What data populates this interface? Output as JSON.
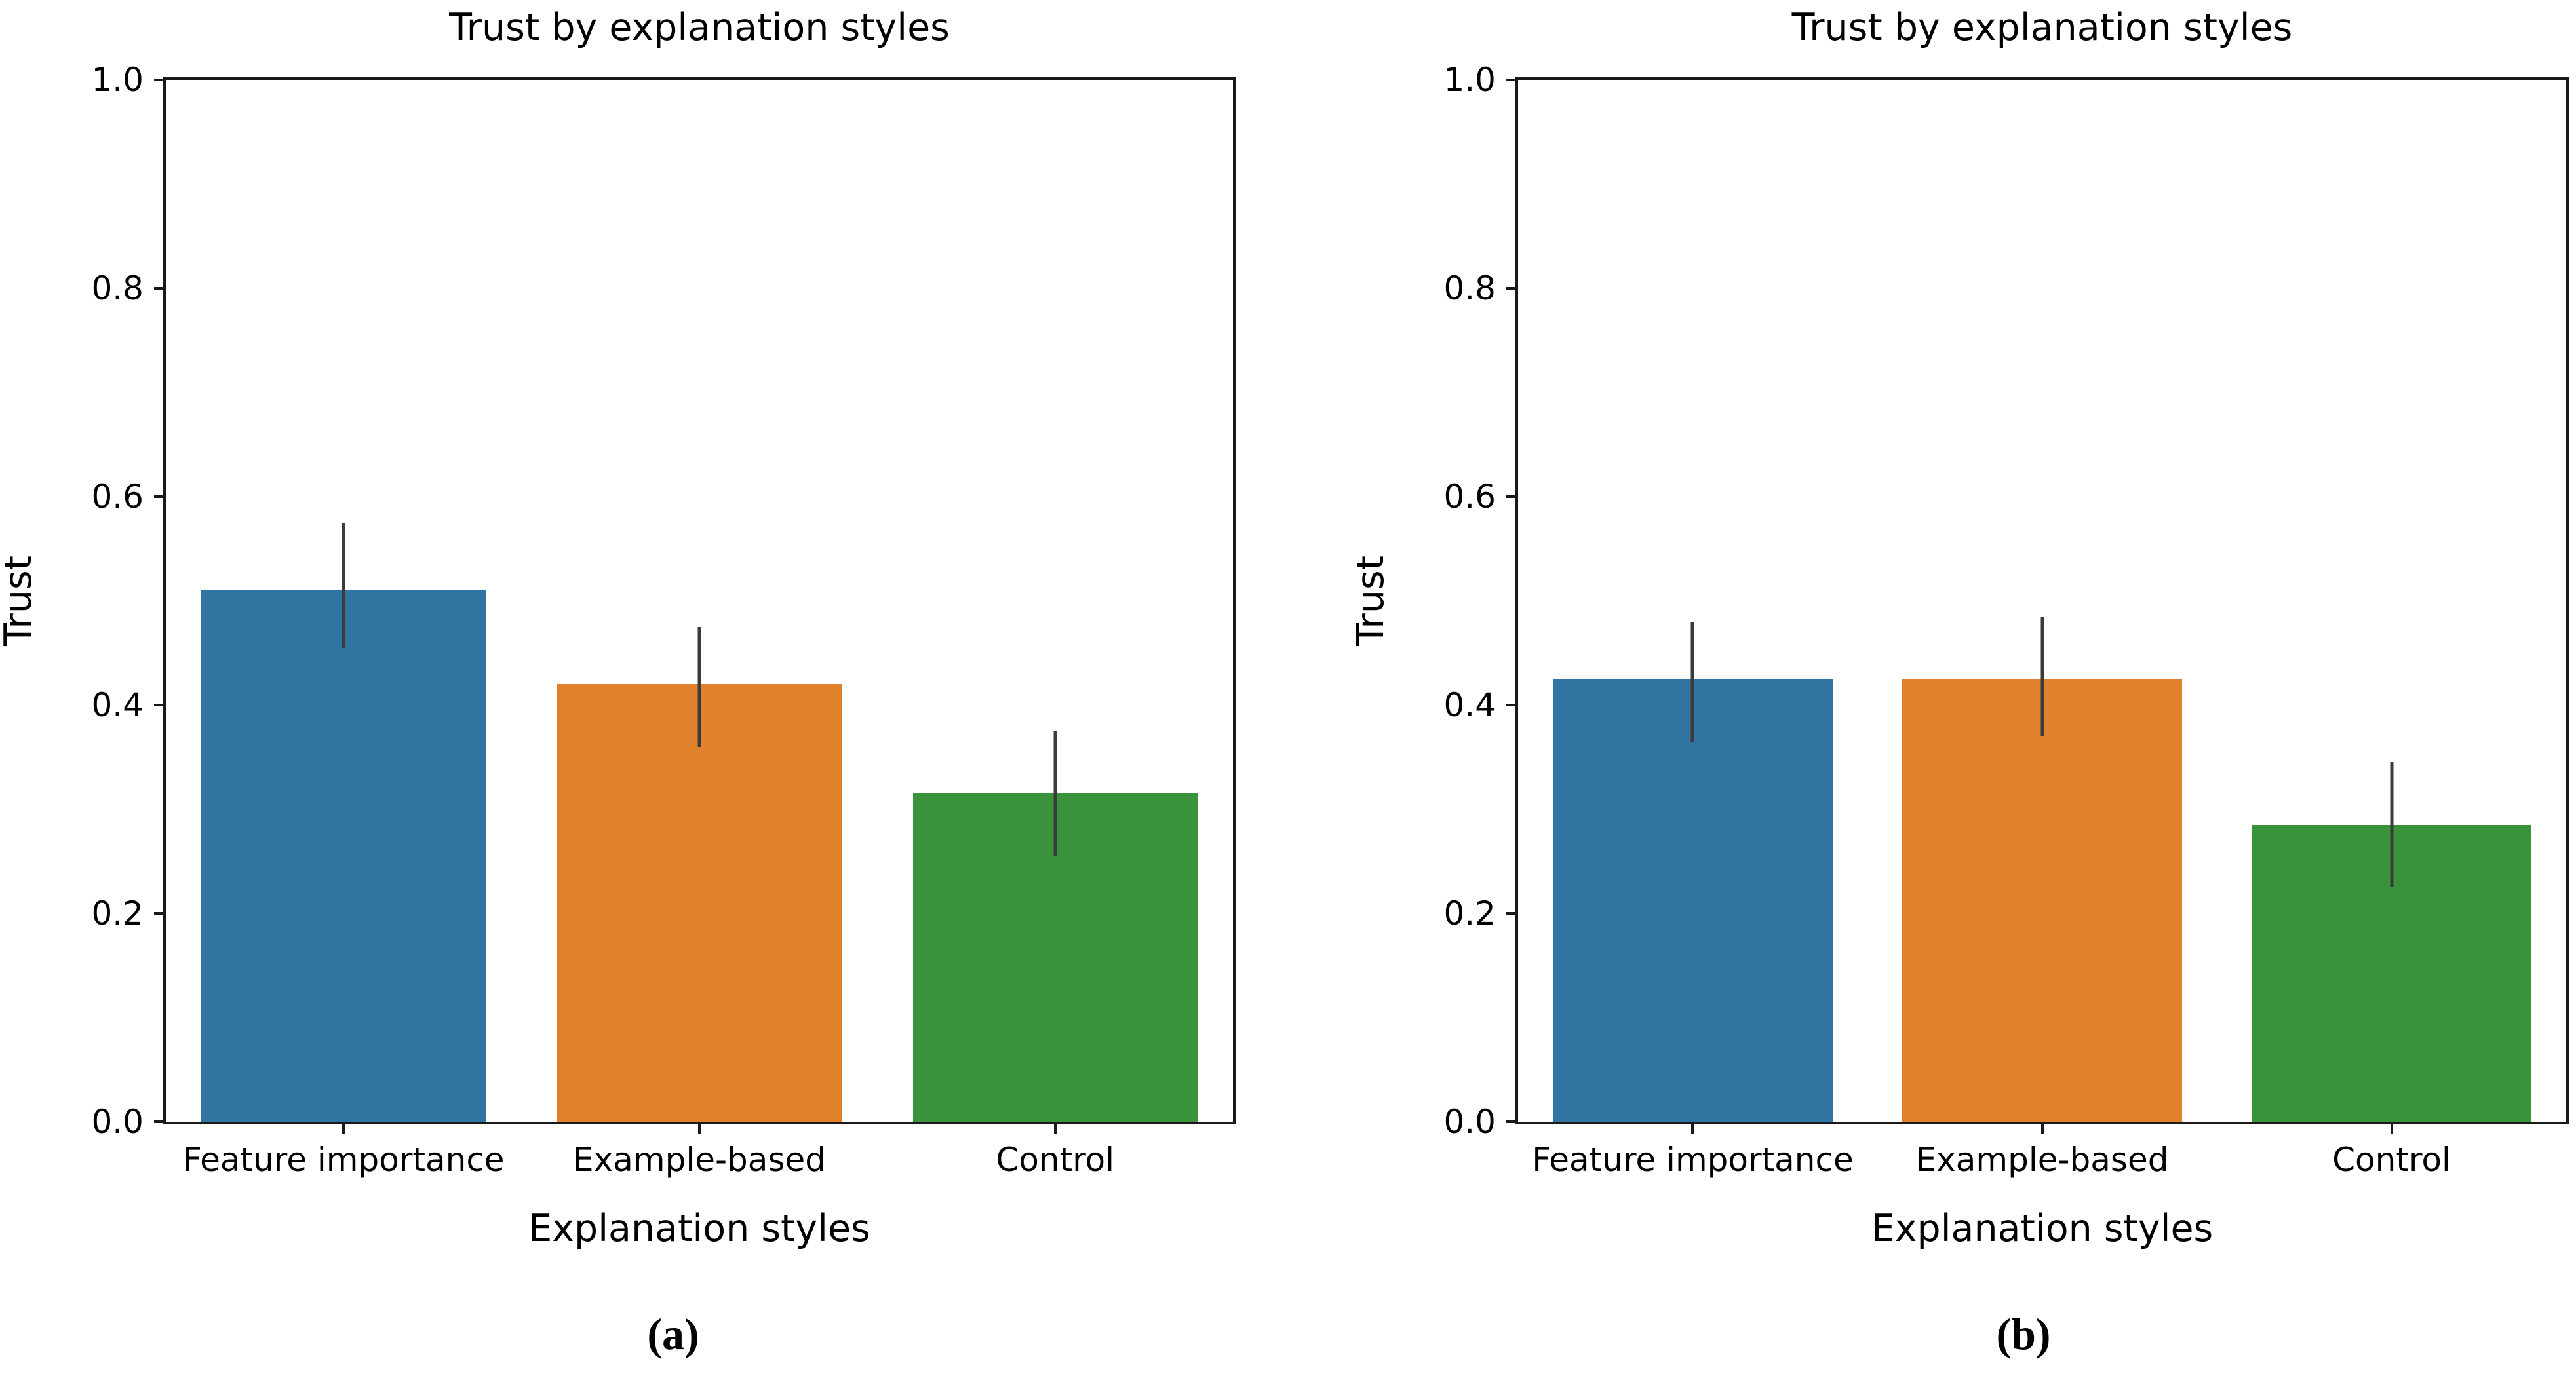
{
  "figure": {
    "captions": [
      {
        "label": "(a)"
      },
      {
        "label": "(b)"
      }
    ]
  },
  "chart_data": [
    {
      "type": "bar",
      "panel": "(a)",
      "title": "Trust by explanation styles",
      "xlabel": "Explanation styles",
      "ylabel": "Trust",
      "categories": [
        "Feature importance",
        "Example-based",
        "Control"
      ],
      "values": [
        0.51,
        0.42,
        0.315
      ],
      "error_low": [
        0.455,
        0.36,
        0.255
      ],
      "error_high": [
        0.575,
        0.475,
        0.375
      ],
      "bar_colors": [
        "#3274a1",
        "#e1812c",
        "#3a923a"
      ],
      "error_color": "#3b3b3b",
      "ylim": [
        0,
        1
      ],
      "yticks": [
        0.0,
        0.2,
        0.4,
        0.6,
        0.8,
        1.0
      ],
      "grid": false,
      "legend_position": "none",
      "bar_width_fraction": 0.8
    },
    {
      "type": "bar",
      "panel": "(b)",
      "title": "Trust by explanation styles",
      "xlabel": "Explanation styles",
      "ylabel": "Trust",
      "categories": [
        "Feature importance",
        "Example-based",
        "Control"
      ],
      "values": [
        0.425,
        0.425,
        0.285
      ],
      "error_low": [
        0.365,
        0.37,
        0.225
      ],
      "error_high": [
        0.48,
        0.485,
        0.345
      ],
      "bar_colors": [
        "#3274a1",
        "#e1812c",
        "#3a923a"
      ],
      "error_color": "#3b3b3b",
      "ylim": [
        0,
        1
      ],
      "yticks": [
        0.0,
        0.2,
        0.4,
        0.6,
        0.8,
        1.0
      ],
      "grid": false,
      "legend_position": "none",
      "bar_width_fraction": 0.8
    }
  ]
}
